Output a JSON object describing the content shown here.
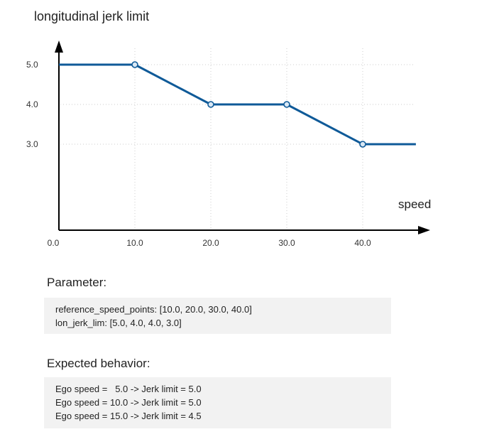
{
  "title": "longitudinal jerk limit",
  "chart_data": {
    "type": "line",
    "title": "longitudinal jerk limit",
    "xlabel": "speed",
    "ylabel": "",
    "x_ticks": [
      "0.0",
      "10.0",
      "20.0",
      "30.0",
      "40.0"
    ],
    "y_ticks": [
      "5.0",
      "4.0",
      "3.0"
    ],
    "xlim": [
      0,
      47
    ],
    "ylim": [
      0,
      5.9
    ],
    "grid": true,
    "series": [
      {
        "points": [
          {
            "x": 0,
            "y": 5.0,
            "marker": false
          },
          {
            "x": 10,
            "y": 5.0,
            "marker": true
          },
          {
            "x": 20,
            "y": 4.0,
            "marker": true
          },
          {
            "x": 30,
            "y": 4.0,
            "marker": true
          },
          {
            "x": 40,
            "y": 3.0,
            "marker": true
          },
          {
            "x": 47,
            "y": 3.0,
            "marker": false
          }
        ],
        "color": "#0f5a98"
      }
    ]
  },
  "parameter": {
    "heading": "Parameter:",
    "lines": [
      "reference_speed_points: [10.0, 20.0, 30.0, 40.0]",
      "lon_jerk_lim: [5.0, 4.0, 4.0, 3.0]"
    ]
  },
  "expected": {
    "heading": "Expected behavior:",
    "lines": [
      "Ego speed =   5.0 -> Jerk limit = 5.0",
      "Ego speed = 10.0 -> Jerk limit = 5.0",
      "Ego speed = 15.0 -> Jerk limit = 4.5"
    ]
  },
  "colors": {
    "line": "#0f5a98",
    "marker_fill": "#d9e8f5",
    "axis": "#000000",
    "grid": "#cccccc",
    "box_bg": "#f2f2f2"
  }
}
